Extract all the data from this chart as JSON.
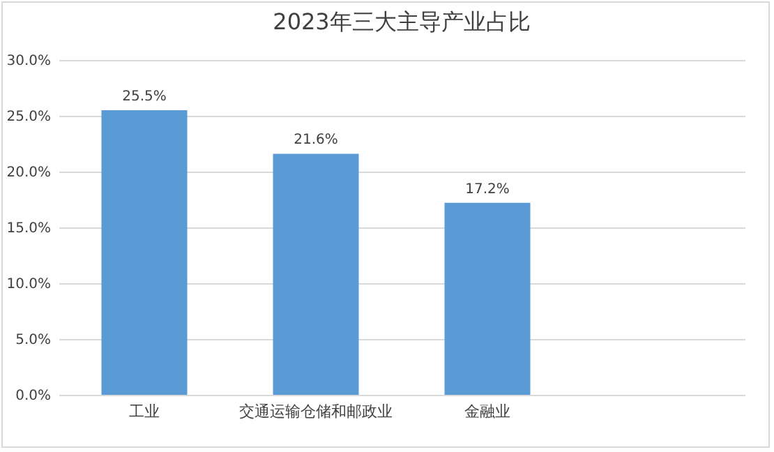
{
  "chart_data": {
    "type": "bar",
    "title": "2023年三大主导产业占比",
    "categories": [
      "工业",
      "交通运输仓储和邮政业",
      "金融业",
      null
    ],
    "values": [
      25.5,
      21.6,
      17.2,
      null
    ],
    "value_labels": [
      "25.5%",
      "21.6%",
      "17.2%",
      null
    ],
    "color": "#5b9bd5",
    "ylim": [
      0,
      30
    ],
    "yticks": [
      {
        "value": 0,
        "label": "0.0%"
      },
      {
        "value": 5,
        "label": "5.0%"
      },
      {
        "value": 10,
        "label": "10.0%"
      },
      {
        "value": 15,
        "label": "15.0%"
      },
      {
        "value": 20,
        "label": "20.0%"
      },
      {
        "value": 25,
        "label": "25.0%"
      },
      {
        "value": 30,
        "label": "30.0%"
      }
    ],
    "grid": "y"
  }
}
